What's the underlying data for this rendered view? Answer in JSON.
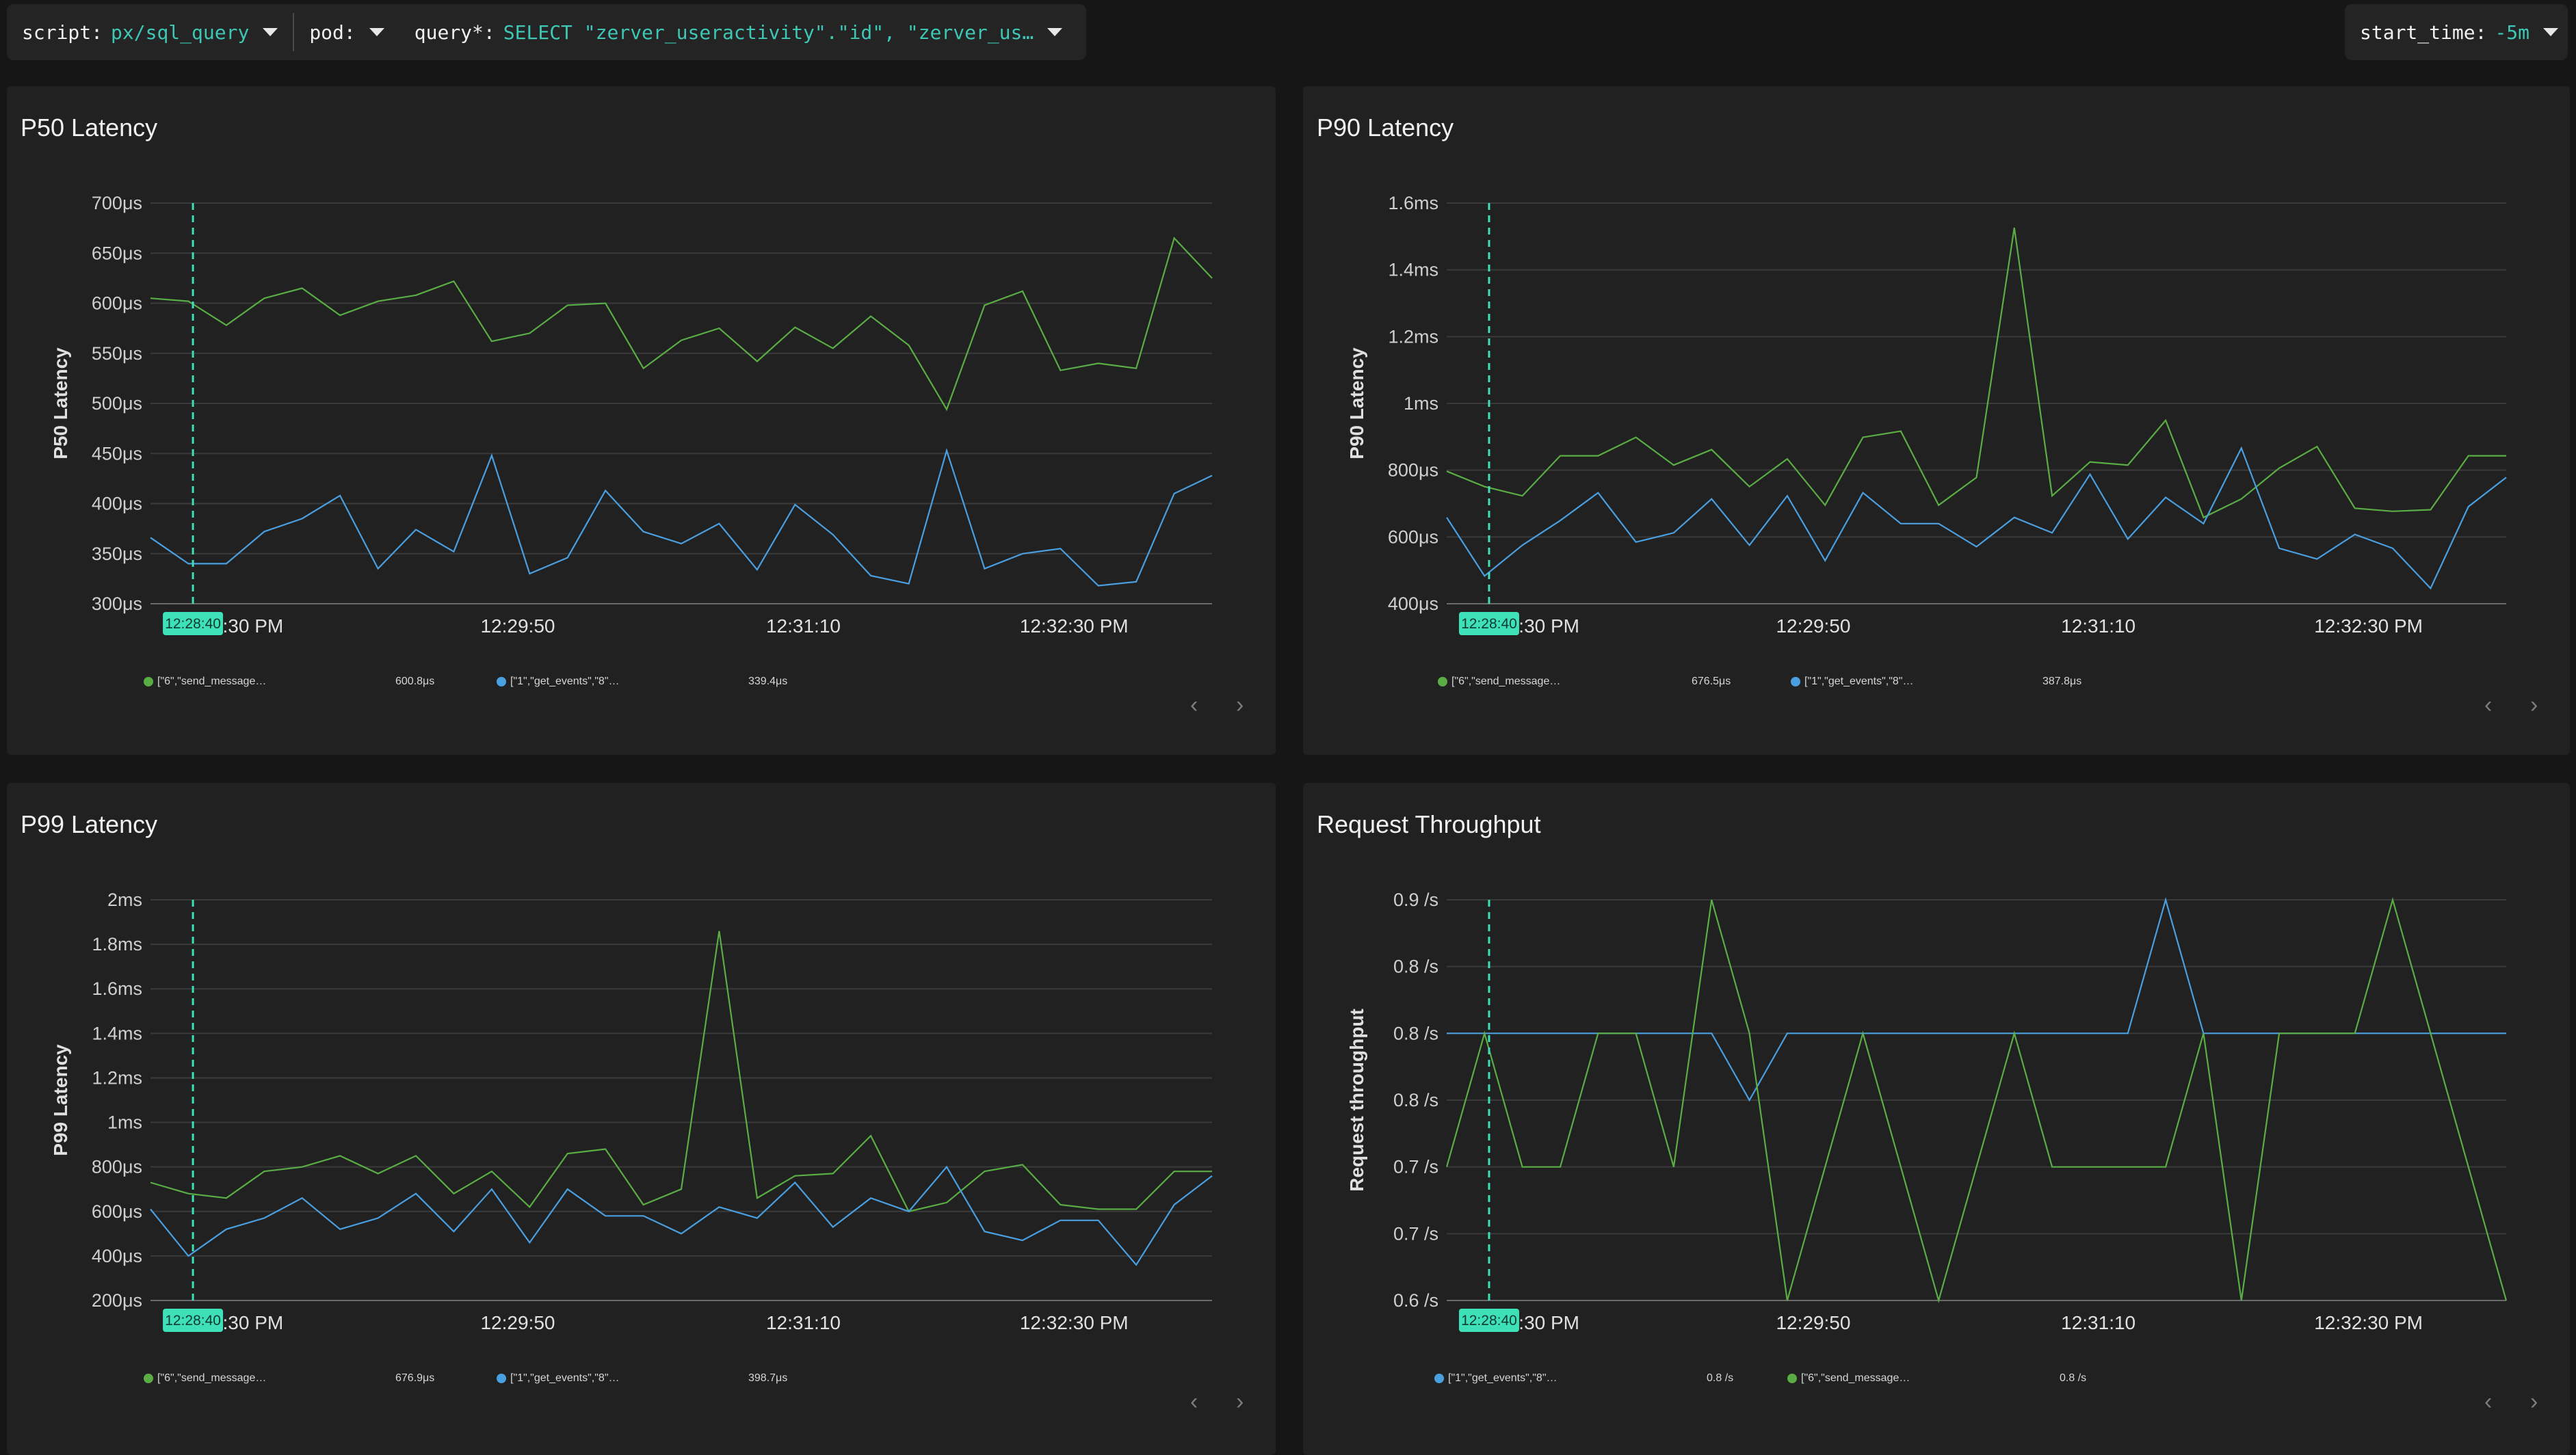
{
  "toolbar": {
    "script_key": "script:",
    "script_val": "px/sql_query",
    "pod_key": "pod:",
    "query_key": "query*:",
    "query_val": "SELECT \"zerver_useractivity\".\"id\", \"zerver_us…",
    "start_key": "start_time:",
    "start_val": "-5m"
  },
  "colors": {
    "green": "#5aad45",
    "blue": "#4a9fe0",
    "cursor": "#3ee0b8"
  },
  "cursor_label": "12:28:40",
  "x_ticks": [
    "12:28:30 PM",
    "12:29:50",
    "12:31:10",
    "12:32:30 PM"
  ],
  "panels": [
    {
      "title": "P50 Latency",
      "ylabel": "P50 Latency",
      "legend": [
        {
          "color": "green",
          "label": "[\"6\",\"send_message…",
          "value": "600.8μs"
        },
        {
          "color": "blue",
          "label": "[\"1\",\"get_events\",\"8\"…",
          "value": "339.4μs"
        }
      ]
    },
    {
      "title": "P90 Latency",
      "ylabel": "P90 Latency",
      "legend": [
        {
          "color": "green",
          "label": "[\"6\",\"send_message…",
          "value": "676.5μs"
        },
        {
          "color": "blue",
          "label": "[\"1\",\"get_events\",\"8\"…",
          "value": "387.8μs"
        }
      ]
    },
    {
      "title": "P99 Latency",
      "ylabel": "P99 Latency",
      "legend": [
        {
          "color": "green",
          "label": "[\"6\",\"send_message…",
          "value": "676.9μs"
        },
        {
          "color": "blue",
          "label": "[\"1\",\"get_events\",\"8\"…",
          "value": "398.7μs"
        }
      ]
    },
    {
      "title": "Request Throughput",
      "ylabel": "Request throughput",
      "legend": [
        {
          "color": "blue",
          "label": "[\"1\",\"get_events\",\"8\"…",
          "value": "0.8 /s"
        },
        {
          "color": "green",
          "label": "[\"6\",\"send_message…",
          "value": "0.8 /s"
        }
      ]
    }
  ],
  "chart_data": [
    {
      "type": "line",
      "title": "P50 Latency",
      "ylabel": "P50 Latency",
      "y_ticks": [
        "700μs",
        "650μs",
        "600μs",
        "550μs",
        "500μs",
        "450μs",
        "400μs",
        "350μs",
        "300μs"
      ],
      "ylim": [
        300,
        700
      ],
      "series": [
        {
          "name": "[\"6\",\"send_message…",
          "color": "green",
          "values": [
            605,
            602,
            578,
            605,
            615,
            588,
            602,
            608,
            622,
            562,
            570,
            598,
            600,
            535,
            563,
            575,
            542,
            576,
            555,
            587,
            558,
            494,
            598,
            612,
            533,
            540,
            535,
            665,
            625
          ]
        },
        {
          "name": "[\"1\",\"get_events\",\"8\"…",
          "color": "blue",
          "values": [
            366,
            340,
            340,
            372,
            385,
            408,
            335,
            374,
            352,
            448,
            330,
            346,
            413,
            372,
            360,
            380,
            334,
            399,
            369,
            328,
            320,
            453,
            335,
            350,
            355,
            318,
            322,
            410,
            428
          ]
        }
      ]
    },
    {
      "type": "line",
      "title": "P90 Latency",
      "ylabel": "P90 Latency",
      "y_ticks": [
        "1.6ms",
        "1.4ms",
        "1.2ms",
        "1ms",
        "800μs",
        "600μs",
        "400μs"
      ],
      "ylim": [
        300,
        1600
      ],
      "series": [
        {
          "name": "[\"6\",\"send_message…",
          "color": "green",
          "values": [
            730,
            680,
            650,
            780,
            780,
            840,
            750,
            800,
            680,
            770,
            620,
            840,
            860,
            620,
            710,
            1520,
            650,
            760,
            750,
            895,
            580,
            640,
            740,
            810,
            610,
            600,
            605,
            780,
            780
          ]
        },
        {
          "name": "[\"1\",\"get_events\",\"8\"…",
          "color": "blue",
          "values": [
            580,
            390,
            490,
            570,
            660,
            500,
            530,
            640,
            490,
            650,
            440,
            660,
            560,
            560,
            485,
            580,
            530,
            720,
            510,
            645,
            560,
            805,
            480,
            445,
            525,
            480,
            350,
            615,
            710
          ]
        }
      ]
    },
    {
      "type": "line",
      "title": "P99 Latency",
      "ylabel": "P99 Latency",
      "y_ticks": [
        "2ms",
        "1.8ms",
        "1.6ms",
        "1.4ms",
        "1.2ms",
        "1ms",
        "800μs",
        "600μs",
        "400μs",
        "200μs"
      ],
      "ylim": [
        200,
        2000
      ],
      "series": [
        {
          "name": "[\"6\",\"send_message…",
          "color": "green",
          "values": [
            730,
            680,
            660,
            780,
            800,
            850,
            770,
            850,
            680,
            780,
            620,
            860,
            880,
            630,
            700,
            1860,
            660,
            760,
            770,
            940,
            600,
            640,
            780,
            810,
            630,
            610,
            610,
            780,
            780
          ]
        },
        {
          "name": "[\"1\",\"get_events\",\"8\"…",
          "color": "blue",
          "values": [
            610,
            400,
            520,
            570,
            660,
            520,
            570,
            680,
            510,
            700,
            460,
            700,
            580,
            580,
            500,
            620,
            570,
            730,
            530,
            660,
            600,
            800,
            510,
            470,
            560,
            560,
            360,
            630,
            760
          ]
        }
      ]
    },
    {
      "type": "line",
      "title": "Request Throughput",
      "ylabel": "Request throughput",
      "y_ticks": [
        "0.9 /s",
        "0.8 /s",
        "0.8 /s",
        "0.8 /s",
        "0.7 /s",
        "0.7 /s",
        "0.6 /s"
      ],
      "ylim": [
        0.6,
        0.9
      ],
      "series": [
        {
          "name": "[\"1\",\"get_events\",\"8\"…",
          "color": "blue",
          "values": [
            0.8,
            0.8,
            0.8,
            0.8,
            0.8,
            0.8,
            0.8,
            0.8,
            0.75,
            0.8,
            0.8,
            0.8,
            0.8,
            0.8,
            0.8,
            0.8,
            0.8,
            0.8,
            0.8,
            0.9,
            0.8,
            0.8,
            0.8,
            0.8,
            0.8,
            0.8,
            0.8,
            0.8,
            0.8
          ]
        },
        {
          "name": "[\"6\",\"send_message…",
          "color": "green",
          "values": [
            0.7,
            0.8,
            0.7,
            0.7,
            0.8,
            0.8,
            0.7,
            0.9,
            0.8,
            0.6,
            0.7,
            0.8,
            0.7,
            0.6,
            0.7,
            0.8,
            0.7,
            0.7,
            0.7,
            0.7,
            0.8,
            0.6,
            0.8,
            0.8,
            0.8,
            0.9,
            0.8,
            0.7,
            0.6
          ]
        }
      ]
    }
  ]
}
